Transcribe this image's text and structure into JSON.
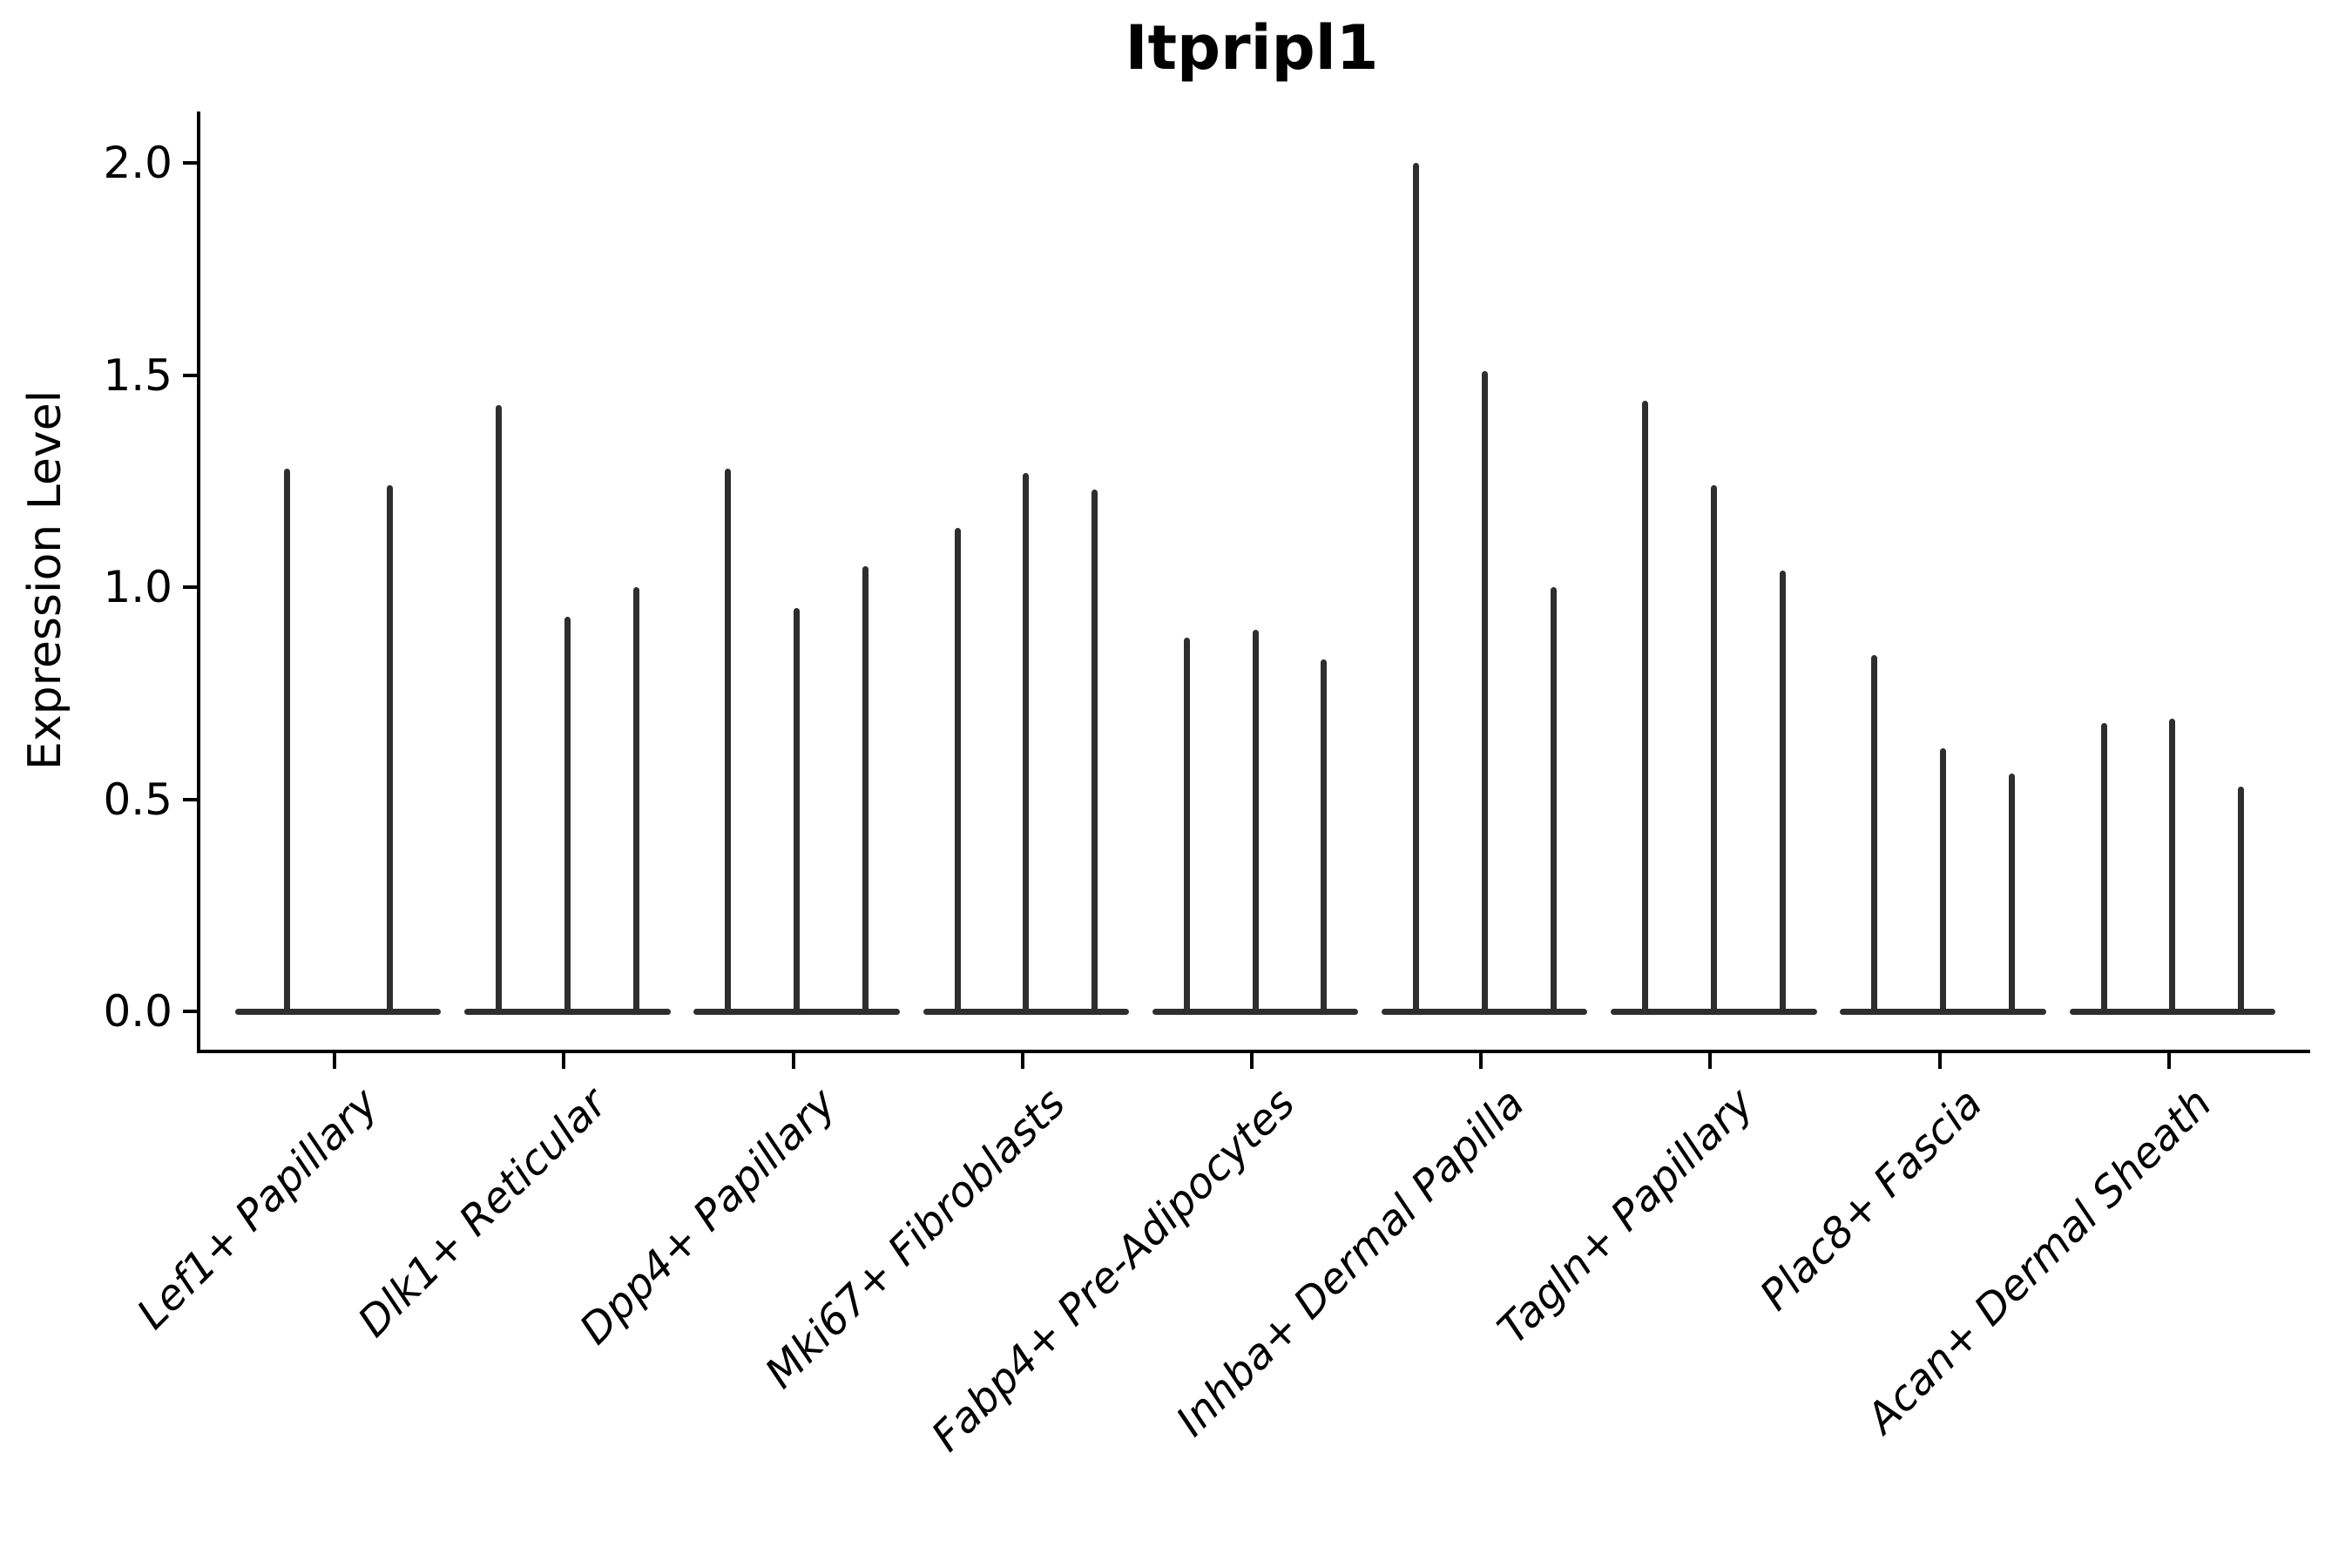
{
  "figure_title": "Itpripl1",
  "colors": {
    "violin": "#2e2e2e",
    "axis": "#000000",
    "background": "#ffffff"
  },
  "chart_data": {
    "type": "violin",
    "title": "Itpripl1",
    "xlabel": "",
    "ylabel": "Expression Level",
    "ylim": [
      0,
      2.12
    ],
    "yticks": [
      "0.0",
      "0.5",
      "1.0",
      "1.5",
      "2.0"
    ],
    "grid": false,
    "legend": "none",
    "categories": [
      "Lef1+ Papillary",
      "Dlk1+ Reticular",
      "Dpp4+ Papillary",
      "Mki67+ Fibroblasts",
      "Fabp4+ Pre-Adipocytes",
      "Inhba+ Dermal Papilla",
      "Tagln+ Papillary",
      "Plac8+ Fascia",
      "Acan+ Dermal Sheath"
    ],
    "groups": [
      {
        "label": "Lef1+ Papillary",
        "violin_max_values": [
          1.28,
          1.24
        ]
      },
      {
        "label": "Dlk1+ Reticular",
        "violin_max_values": [
          1.43,
          0.93,
          1.0
        ]
      },
      {
        "label": "Dpp4+ Papillary",
        "violin_max_values": [
          1.28,
          0.95,
          1.05
        ]
      },
      {
        "label": "Mki67+ Fibroblasts",
        "violin_max_values": [
          1.14,
          1.27,
          1.23
        ]
      },
      {
        "label": "Fabp4+ Pre-Adipocytes",
        "violin_max_values": [
          0.88,
          0.9,
          0.83
        ]
      },
      {
        "label": "Inhba+ Dermal Papilla",
        "violin_max_values": [
          2.0,
          1.51,
          1.0
        ]
      },
      {
        "label": "Tagln+ Papillary",
        "violin_max_values": [
          1.44,
          1.24,
          1.04
        ]
      },
      {
        "label": "Plac8+ Fascia",
        "violin_max_values": [
          0.84,
          0.62,
          0.56
        ]
      },
      {
        "label": "Acan+ Dermal Sheath",
        "violin_max_values": [
          0.68,
          0.69,
          0.53
        ]
      }
    ],
    "description": "Very thin violin plots of Itpripl1 expression per fibroblast cluster; each cluster shows 2-3 narrow spike-like violins rising from a flat dark base at expression 0."
  }
}
